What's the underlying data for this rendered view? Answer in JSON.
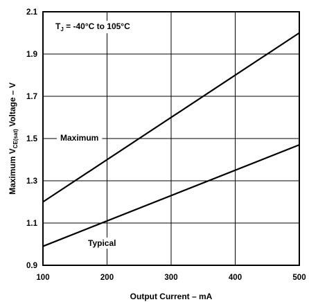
{
  "chart_data": {
    "type": "line",
    "x_label_text": "Output Current – mA",
    "y_label": {
      "prefix": "Maximum V",
      "subscript": "CE(sat)",
      "suffix": " Voltage – V"
    },
    "xlim": [
      100,
      500
    ],
    "ylim": [
      0.9,
      2.1
    ],
    "x_ticks": [
      100,
      200,
      300,
      400,
      500
    ],
    "y_ticks": [
      0.9,
      1.1,
      1.3,
      1.5,
      1.7,
      1.9,
      2.1
    ],
    "x_tick_labels": [
      "100",
      "200",
      "300",
      "400",
      "500"
    ],
    "y_tick_labels": [
      "0.9",
      "1.1",
      "1.3",
      "1.5",
      "1.7",
      "1.9",
      "2.1"
    ],
    "grid": true,
    "condition": {
      "prefix": "T",
      "subscript": "J",
      "suffix": " = -40°C to 105°C"
    },
    "series": [
      {
        "name": "Maximum",
        "x": [
          100,
          500
        ],
        "y": [
          1.2,
          2.0
        ]
      },
      {
        "name": "Typical",
        "x": [
          100,
          500
        ],
        "y": [
          0.99,
          1.47
        ]
      }
    ],
    "colors": {
      "line": "#000000",
      "grid": "#000000"
    }
  }
}
